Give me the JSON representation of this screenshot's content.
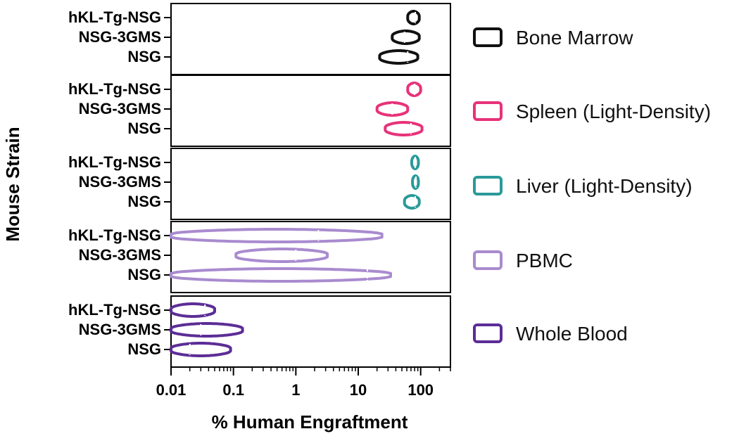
{
  "chart_data": {
    "type": "violin",
    "xlabel": "% Human Engraftment",
    "ylabel": "Mouse Strain",
    "x_scale": "log",
    "xlim": [
      0.01,
      300
    ],
    "x_ticks": [
      "0.01",
      "0.1",
      "1",
      "10",
      "100"
    ],
    "strains": [
      "hKL-Tg-NSG",
      "NSG-3GMS",
      "NSG"
    ],
    "legend_position": "right",
    "panels": [
      {
        "name": "Bone Marrow",
        "color": "#111111",
        "violins": [
          {
            "strain": "hKL-Tg-NSG",
            "min": 62,
            "max": 95,
            "median": 82
          },
          {
            "strain": "NSG-3GMS",
            "min": 35,
            "max": 95,
            "median": 55
          },
          {
            "strain": "NSG",
            "min": 22,
            "max": 90,
            "median": 62
          }
        ]
      },
      {
        "name": "Spleen (Light-Density)",
        "color": "#e8327a",
        "violins": [
          {
            "strain": "hKL-Tg-NSG",
            "min": 62,
            "max": 100,
            "median": 80
          },
          {
            "strain": "NSG-3GMS",
            "min": 20,
            "max": 62,
            "median": 35
          },
          {
            "strain": "NSG",
            "min": 27,
            "max": 105,
            "median": 70
          }
        ]
      },
      {
        "name": "Liver (Light-Density)",
        "color": "#2a9a99",
        "violins": [
          {
            "strain": "hKL-Tg-NSG",
            "min": 72,
            "max": 92,
            "median": 82
          },
          {
            "strain": "NSG-3GMS",
            "min": 74,
            "max": 92,
            "median": 84
          },
          {
            "strain": "NSG",
            "min": 55,
            "max": 95,
            "median": 82
          }
        ]
      },
      {
        "name": "PBMC",
        "color": "#a98bcf",
        "violins": [
          {
            "strain": "hKL-Tg-NSG",
            "min": 0.01,
            "max": 24,
            "median": 2.3
          },
          {
            "strain": "NSG-3GMS",
            "min": 0.11,
            "max": 3.2,
            "median": 1.0
          },
          {
            "strain": "NSG",
            "min": 0.01,
            "max": 33,
            "median": 14
          }
        ]
      },
      {
        "name": "Whole Blood",
        "color": "#5c2d96",
        "violins": [
          {
            "strain": "hKL-Tg-NSG",
            "min": 0.01,
            "max": 0.05,
            "median": 0.035
          },
          {
            "strain": "NSG-3GMS",
            "min": 0.01,
            "max": 0.14,
            "median": 0.03
          },
          {
            "strain": "NSG",
            "min": 0.01,
            "max": 0.09,
            "median": 0.02
          }
        ]
      }
    ]
  }
}
